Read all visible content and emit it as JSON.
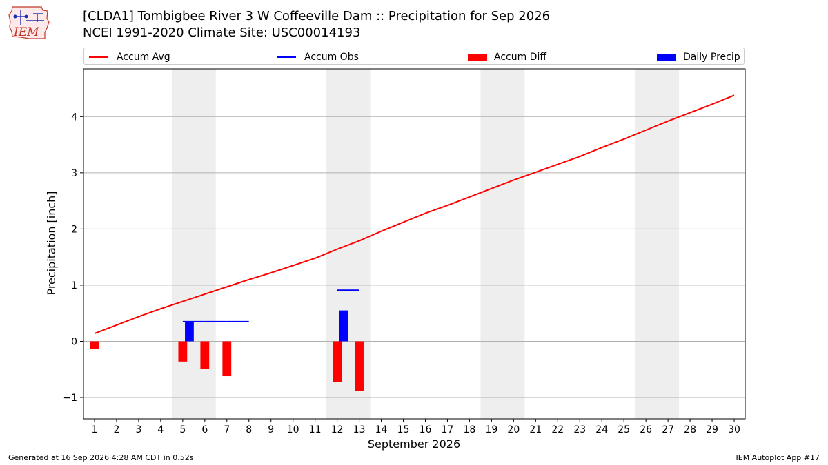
{
  "header": {
    "logo_text": "IEM",
    "title": "[CLDA1] Tombigbee River 3 W Coffeeville Dam :: Precipitation for Sep 2026",
    "subtitle": "NCEI 1991-2020 Climate Site: USC00014193"
  },
  "legend": {
    "items": [
      {
        "label": "Accum Avg",
        "kind": "line",
        "color": "#ff0000"
      },
      {
        "label": "Accum Obs",
        "kind": "line",
        "color": "#0000ff"
      },
      {
        "label": "Accum Diff",
        "kind": "bar",
        "color": "#ff0000"
      },
      {
        "label": "Daily Precip",
        "kind": "bar",
        "color": "#0000ff"
      }
    ]
  },
  "footer": {
    "left": "Generated at 16 Sep 2026 4:28 AM CDT in 0.52s",
    "right": "IEM Autoplot App #17"
  },
  "chart_data": {
    "type": "bar",
    "title": "[CLDA1] Tombigbee River 3 W Coffeeville Dam :: Precipitation for Sep 2026",
    "subtitle": "NCEI 1991-2020 Climate Site: USC00014193",
    "xlabel": "September 2026",
    "ylabel": "Precipitation [inch]",
    "x": [
      1,
      2,
      3,
      4,
      5,
      6,
      7,
      8,
      9,
      10,
      11,
      12,
      13,
      14,
      15,
      16,
      17,
      18,
      19,
      20,
      21,
      22,
      23,
      24,
      25,
      26,
      27,
      28,
      29,
      30
    ],
    "xlim": [
      0.5,
      30.5
    ],
    "ylim": [
      -1.38,
      4.85
    ],
    "yticks": [
      -1,
      0,
      1,
      2,
      3,
      4
    ],
    "ytick_labels": [
      "−1",
      "0",
      "1",
      "2",
      "3",
      "4"
    ],
    "grid": "horizontal",
    "legend_position": "top",
    "weekend_shading": [
      [
        4.5,
        6.5
      ],
      [
        11.5,
        13.5
      ],
      [
        18.5,
        20.5
      ],
      [
        25.5,
        27.5
      ]
    ],
    "series": [
      {
        "name": "Accum Avg",
        "type": "line",
        "color": "#ff0000",
        "x": [
          1,
          2,
          3,
          4,
          5,
          6,
          7,
          8,
          9,
          10,
          11,
          12,
          13,
          14,
          15,
          16,
          17,
          18,
          19,
          20,
          21,
          22,
          23,
          24,
          25,
          26,
          27,
          28,
          29,
          30
        ],
        "values": [
          0.14,
          0.29,
          0.44,
          0.58,
          0.71,
          0.84,
          0.97,
          1.1,
          1.22,
          1.35,
          1.48,
          1.64,
          1.79,
          1.96,
          2.12,
          2.28,
          2.42,
          2.57,
          2.72,
          2.87,
          3.01,
          3.15,
          3.29,
          3.45,
          3.6,
          3.76,
          3.92,
          4.07,
          4.22,
          4.38
        ]
      },
      {
        "name": "Accum Obs",
        "type": "step",
        "color": "#0000ff",
        "x": [
          5,
          6,
          7,
          12
        ],
        "values": [
          0.35,
          0.35,
          0.35,
          0.91
        ]
      },
      {
        "name": "Accum Diff",
        "type": "bar",
        "color": "#ff0000",
        "x": [
          1,
          5,
          6,
          7,
          12,
          13
        ],
        "values": [
          -0.14,
          -0.36,
          -0.49,
          -0.62,
          -0.73,
          -0.88
        ]
      },
      {
        "name": "Daily Precip",
        "type": "bar",
        "color": "#0000ff",
        "x": [
          5,
          12
        ],
        "values": [
          0.35,
          0.55
        ]
      }
    ]
  }
}
